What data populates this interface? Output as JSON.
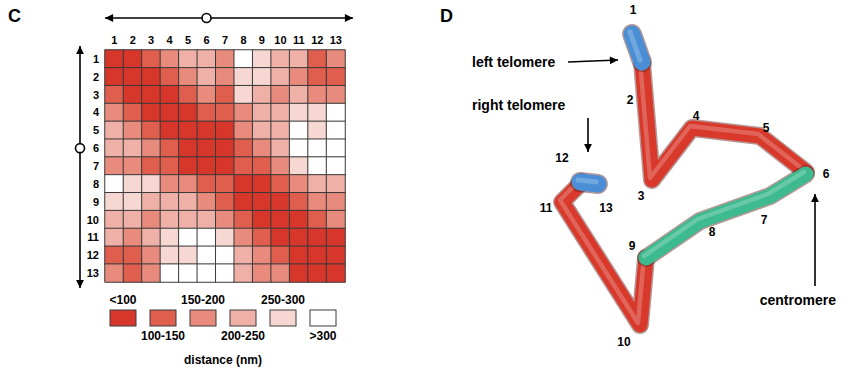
{
  "panel_labels": [
    "C",
    "D"
  ],
  "chart_data": {
    "type": "heatmap",
    "x": [
      "1",
      "2",
      "3",
      "4",
      "5",
      "6",
      "7",
      "8",
      "9",
      "10",
      "11",
      "12",
      "13"
    ],
    "y": [
      "1",
      "2",
      "3",
      "4",
      "5",
      "6",
      "7",
      "8",
      "9",
      "10",
      "11",
      "12",
      "13"
    ],
    "cells": [
      [
        80,
        80,
        125,
        175,
        225,
        225,
        175,
        325,
        275,
        225,
        225,
        125,
        175
      ],
      [
        80,
        80,
        80,
        125,
        175,
        225,
        175,
        275,
        275,
        225,
        175,
        125,
        125
      ],
      [
        125,
        80,
        80,
        80,
        125,
        175,
        125,
        275,
        225,
        175,
        225,
        175,
        175
      ],
      [
        175,
        125,
        80,
        80,
        80,
        125,
        125,
        175,
        225,
        225,
        275,
        275,
        325
      ],
      [
        225,
        175,
        125,
        80,
        80,
        80,
        80,
        175,
        225,
        225,
        325,
        275,
        325
      ],
      [
        225,
        225,
        175,
        125,
        80,
        80,
        80,
        125,
        175,
        225,
        325,
        325,
        325
      ],
      [
        175,
        175,
        125,
        125,
        80,
        80,
        80,
        125,
        125,
        175,
        275,
        325,
        325
      ],
      [
        325,
        275,
        275,
        175,
        175,
        125,
        125,
        80,
        80,
        125,
        175,
        225,
        225
      ],
      [
        275,
        275,
        225,
        225,
        225,
        175,
        125,
        80,
        80,
        80,
        125,
        175,
        175
      ],
      [
        225,
        225,
        175,
        225,
        225,
        225,
        175,
        125,
        80,
        80,
        80,
        125,
        175
      ],
      [
        225,
        175,
        225,
        275,
        325,
        325,
        275,
        175,
        125,
        80,
        80,
        80,
        80
      ],
      [
        125,
        125,
        175,
        275,
        275,
        325,
        325,
        225,
        175,
        125,
        80,
        80,
        80
      ],
      [
        175,
        125,
        175,
        325,
        325,
        325,
        325,
        225,
        175,
        175,
        80,
        80,
        80
      ]
    ],
    "color_scale": {
      "title": "distance (nm)",
      "breaks": [
        100,
        150,
        200,
        250,
        300
      ],
      "labels": [
        "<100",
        "100-150",
        "150-200",
        "200-250",
        "250-300",
        ">300"
      ],
      "colors": [
        "#d6372a",
        "#df5e4e",
        "#e88a7c",
        "#efb1a7",
        "#f6d7d2",
        "#ffffff"
      ]
    }
  },
  "diagram": {
    "points": [
      "1",
      "2",
      "3",
      "4",
      "5",
      "6",
      "7",
      "8",
      "9",
      "10",
      "11",
      "12",
      "13"
    ],
    "regions": [
      {
        "label": "left telomere",
        "color": "#4a8fd6"
      },
      {
        "label": "right telomere",
        "color": "#4a8fd6"
      },
      {
        "label": "centromere",
        "color": "#3dba8f"
      }
    ],
    "chromosome_color": "#d8392b"
  }
}
